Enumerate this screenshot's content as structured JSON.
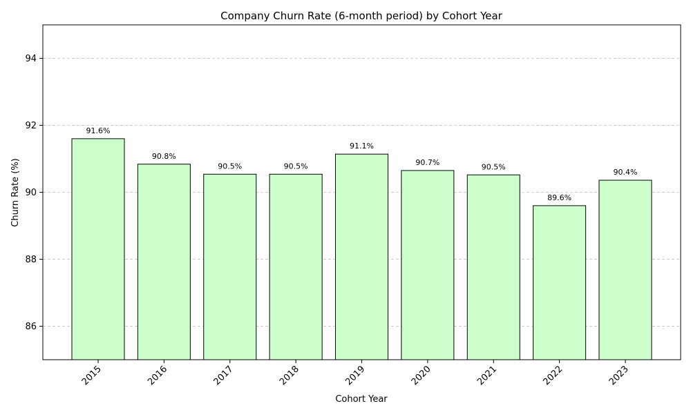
{
  "chart_data": {
    "type": "bar",
    "title": "Company Churn Rate (6-month period) by Cohort Year",
    "xlabel": "Cohort Year",
    "ylabel": "Churn Rate (%)",
    "categories": [
      "2015",
      "2016",
      "2017",
      "2018",
      "2019",
      "2020",
      "2021",
      "2022",
      "2023"
    ],
    "values": [
      91.6,
      90.84,
      90.54,
      90.54,
      91.14,
      90.65,
      90.52,
      89.6,
      90.36
    ],
    "data_labels": [
      "91.6%",
      "90.8%",
      "90.5%",
      "90.5%",
      "91.1%",
      "90.7%",
      "90.5%",
      "89.6%",
      "90.4%"
    ],
    "ylim": [
      85,
      95
    ],
    "yticks": [
      86,
      88,
      90,
      92,
      94
    ],
    "ytick_labels": [
      "86",
      "88",
      "90",
      "92",
      "94"
    ],
    "grid": "horizontal-dashed",
    "legend": "none",
    "bar_color": "#ccffcc",
    "bar_edge_color": "#000000",
    "grid_color": "#cccccc"
  }
}
